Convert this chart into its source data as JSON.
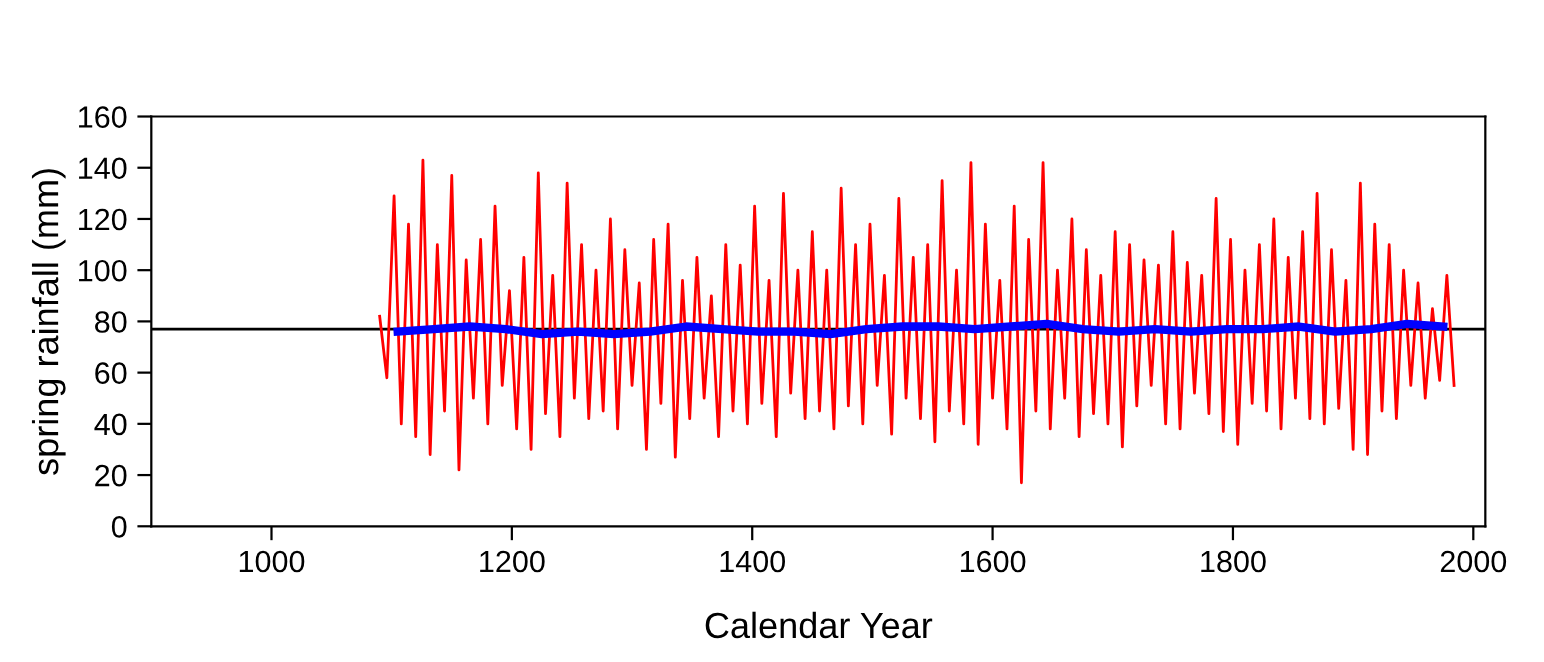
{
  "chart_data": {
    "type": "line",
    "xlabel": "Calendar Year",
    "ylabel": "spring rainfall (mm)",
    "xlim": [
      900,
      2010
    ],
    "xticks": [
      1000,
      1200,
      1400,
      1600,
      1800,
      2000
    ],
    "ylim": [
      0,
      160
    ],
    "yticks": [
      0,
      20,
      40,
      60,
      80,
      100,
      120,
      140,
      160
    ],
    "grid": false,
    "legend": false,
    "marker": "none",
    "line_style": "solid",
    "ref_lines": [
      {
        "axis": "y",
        "value": 77,
        "color": "#000000"
      }
    ],
    "series": [
      {
        "color": "#ff0000",
        "x": [
          1090,
          1096,
          1102,
          1108,
          1114,
          1120,
          1126,
          1132,
          1138,
          1144,
          1150,
          1156,
          1162,
          1168,
          1174,
          1180,
          1186,
          1192,
          1198,
          1204,
          1210,
          1216,
          1222,
          1228,
          1234,
          1240,
          1246,
          1252,
          1258,
          1264,
          1270,
          1276,
          1282,
          1288,
          1294,
          1300,
          1306,
          1312,
          1318,
          1324,
          1330,
          1336,
          1342,
          1348,
          1354,
          1360,
          1366,
          1372,
          1378,
          1384,
          1390,
          1396,
          1402,
          1408,
          1414,
          1420,
          1426,
          1432,
          1438,
          1444,
          1450,
          1456,
          1462,
          1468,
          1474,
          1480,
          1486,
          1492,
          1498,
          1504,
          1510,
          1516,
          1522,
          1528,
          1534,
          1540,
          1546,
          1552,
          1558,
          1564,
          1570,
          1576,
          1582,
          1588,
          1594,
          1600,
          1606,
          1612,
          1618,
          1624,
          1630,
          1636,
          1642,
          1648,
          1654,
          1660,
          1666,
          1672,
          1678,
          1684,
          1690,
          1696,
          1702,
          1708,
          1714,
          1720,
          1726,
          1732,
          1738,
          1744,
          1750,
          1756,
          1762,
          1768,
          1774,
          1780,
          1786,
          1792,
          1798,
          1804,
          1810,
          1816,
          1822,
          1828,
          1834,
          1840,
          1846,
          1852,
          1858,
          1864,
          1870,
          1876,
          1882,
          1888,
          1894,
          1900,
          1906,
          1912,
          1918,
          1924,
          1930,
          1936,
          1942,
          1948,
          1954,
          1960,
          1966,
          1972,
          1978,
          1984
        ],
        "values": [
          82,
          58,
          129,
          40,
          118,
          35,
          143,
          28,
          110,
          45,
          137,
          22,
          104,
          50,
          112,
          40,
          125,
          55,
          92,
          38,
          105,
          30,
          138,
          44,
          98,
          35,
          134,
          50,
          110,
          42,
          100,
          45,
          120,
          38,
          108,
          55,
          95,
          30,
          112,
          48,
          118,
          27,
          96,
          42,
          105,
          50,
          90,
          35,
          110,
          45,
          102,
          40,
          125,
          48,
          96,
          35,
          130,
          52,
          100,
          42,
          115,
          45,
          100,
          38,
          132,
          47,
          110,
          40,
          118,
          55,
          98,
          36,
          128,
          50,
          105,
          42,
          110,
          33,
          135,
          45,
          100,
          40,
          142,
          32,
          118,
          50,
          96,
          38,
          125,
          17,
          112,
          45,
          142,
          38,
          100,
          50,
          120,
          35,
          108,
          44,
          98,
          40,
          115,
          31,
          110,
          47,
          104,
          55,
          102,
          40,
          115,
          38,
          103,
          52,
          98,
          44,
          128,
          37,
          112,
          32,
          100,
          48,
          110,
          45,
          120,
          38,
          105,
          50,
          115,
          42,
          130,
          40,
          108,
          46,
          96,
          30,
          134,
          28,
          118,
          45,
          110,
          42,
          100,
          55,
          95,
          50,
          85,
          57,
          98,
          55
        ]
      },
      {
        "color": "#0000ff",
        "x": [
          1105,
          1135,
          1165,
          1195,
          1225,
          1255,
          1285,
          1315,
          1345,
          1375,
          1405,
          1435,
          1465,
          1495,
          1525,
          1555,
          1585,
          1615,
          1645,
          1675,
          1705,
          1735,
          1765,
          1795,
          1825,
          1855,
          1885,
          1915,
          1945,
          1975
        ],
        "values": [
          76,
          77,
          78,
          77,
          75,
          76,
          75,
          76,
          78,
          77,
          76,
          76,
          75,
          77,
          78,
          78,
          77,
          78,
          79,
          77,
          76,
          77,
          76,
          77,
          77,
          78,
          76,
          77,
          79,
          78
        ]
      }
    ]
  }
}
